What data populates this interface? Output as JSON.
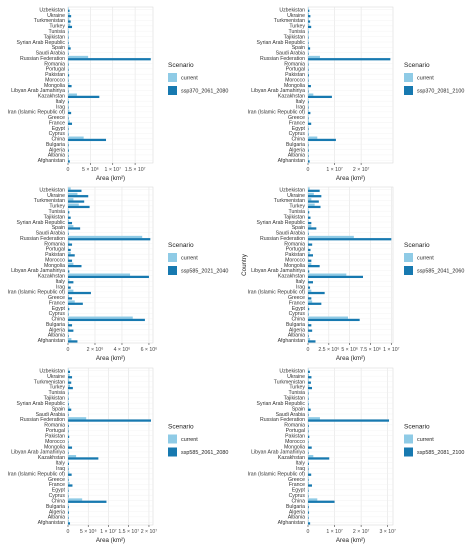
{
  "countries": [
    "Uzbekistan",
    "Ukraine",
    "Turkmenistan",
    "Turkey",
    "Tunisia",
    "Tajikistan",
    "Syrian Arab Republic",
    "Spain",
    "Saudi Arabia",
    "Russian Federation",
    "Romania",
    "Portugal",
    "Pakistan",
    "Morocco",
    "Mongolia",
    "Libyan Arab Jamahiriya",
    "Kazakhstan",
    "Italy",
    "Iraq",
    "Iran (Islamic Republic of)",
    "Greece",
    "France",
    "Egypt",
    "Cyprus",
    "China",
    "Bulgaria",
    "Algeria",
    "Albania",
    "Afghanistan"
  ],
  "legend_title": "Scenario",
  "colors": {
    "current": "#8fcbe6",
    "future": "#1779b0"
  },
  "chart_data": [
    {
      "type": "bar",
      "orientation": "horizontal",
      "xlabel": "Area (km²)",
      "ylabel": "",
      "xlim": [
        0,
        19000000
      ],
      "xticks": [
        0,
        5000000,
        10000000,
        15000000
      ],
      "xtick_labels": [
        "0",
        "5 × 10⁶",
        "1 × 10⁷",
        "1.5 × 10⁷"
      ],
      "series": [
        {
          "name": "current",
          "values": [
            150000,
            400000,
            300000,
            500000,
            20000,
            40000,
            60000,
            350000,
            10000,
            4500000,
            60000,
            30000,
            120000,
            60000,
            300000,
            30000,
            2000000,
            80000,
            30000,
            300000,
            50000,
            400000,
            20000,
            5000,
            3500000,
            50000,
            80000,
            10000,
            200000
          ]
        },
        {
          "name": "ssp370_2061_2080",
          "values": [
            350000,
            700000,
            600000,
            900000,
            50000,
            80000,
            150000,
            600000,
            30000,
            18500000,
            150000,
            80000,
            250000,
            120000,
            800000,
            60000,
            7000000,
            200000,
            60000,
            700000,
            100000,
            900000,
            50000,
            15000,
            8500000,
            150000,
            200000,
            30000,
            400000
          ]
        }
      ]
    },
    {
      "type": "bar",
      "orientation": "horizontal",
      "xlabel": "Area (km²)",
      "ylabel": "",
      "xlim": [
        0,
        32000000
      ],
      "xticks": [
        0,
        10000000,
        20000000
      ],
      "xtick_labels": [
        "0",
        "1 × 10⁷",
        "2 × 10⁷"
      ],
      "series": [
        {
          "name": "current",
          "values": [
            150000,
            400000,
            300000,
            500000,
            20000,
            40000,
            60000,
            350000,
            10000,
            4500000,
            60000,
            30000,
            120000,
            60000,
            300000,
            30000,
            2000000,
            80000,
            30000,
            300000,
            50000,
            400000,
            20000,
            5000,
            3500000,
            50000,
            80000,
            10000,
            200000
          ]
        },
        {
          "name": "ssp370_2081_2100",
          "values": [
            500000,
            900000,
            800000,
            1200000,
            70000,
            100000,
            200000,
            800000,
            40000,
            31000000,
            200000,
            100000,
            350000,
            150000,
            1100000,
            80000,
            9000000,
            300000,
            80000,
            900000,
            150000,
            1200000,
            70000,
            20000,
            10500000,
            200000,
            300000,
            40000,
            600000
          ]
        }
      ]
    },
    {
      "type": "bar",
      "orientation": "horizontal",
      "xlabel": "Area (km²)",
      "ylabel": "",
      "xlim": [
        0,
        6300000
      ],
      "xticks": [
        0,
        2000000,
        4000000,
        6000000
      ],
      "xtick_labels": [
        "0",
        "2 × 10⁶",
        "4 × 10⁶",
        "6 × 10⁶"
      ],
      "series": [
        {
          "name": "current",
          "values": [
            200000,
            700000,
            400000,
            800000,
            20000,
            50000,
            80000,
            400000,
            10000,
            5500000,
            100000,
            50000,
            200000,
            80000,
            400000,
            30000,
            4600000,
            100000,
            40000,
            400000,
            80000,
            500000,
            20000,
            8000,
            4800000,
            80000,
            100000,
            10000,
            250000
          ]
        },
        {
          "name": "ssp585_2021_2040",
          "values": [
            1000000,
            1500000,
            1200000,
            1600000,
            100000,
            200000,
            300000,
            900000,
            50000,
            6100000,
            300000,
            200000,
            500000,
            300000,
            1000000,
            100000,
            6000000,
            400000,
            200000,
            1700000,
            300000,
            1100000,
            100000,
            30000,
            5700000,
            300000,
            400000,
            50000,
            700000
          ]
        }
      ]
    },
    {
      "type": "bar",
      "orientation": "horizontal",
      "xlabel": "Area (km²)",
      "ylabel": "Country",
      "xlim": [
        0,
        10200000
      ],
      "xticks": [
        0,
        2500000,
        5000000,
        7500000,
        10000000
      ],
      "xtick_labels": [
        "0",
        "2.5 × 10⁶",
        "5 × 10⁶",
        "7.5 × 10⁶",
        "1 × 10⁷"
      ],
      "series": [
        {
          "name": "current",
          "values": [
            200000,
            700000,
            400000,
            800000,
            20000,
            50000,
            80000,
            400000,
            10000,
            5500000,
            100000,
            50000,
            200000,
            80000,
            400000,
            30000,
            4600000,
            100000,
            40000,
            400000,
            80000,
            500000,
            20000,
            8000,
            4800000,
            80000,
            100000,
            10000,
            250000
          ]
        },
        {
          "name": "ssp585_2041_2060",
          "values": [
            1400000,
            1600000,
            1300000,
            1500000,
            150000,
            300000,
            400000,
            1000000,
            80000,
            10000000,
            500000,
            300000,
            600000,
            400000,
            1400000,
            150000,
            6600000,
            600000,
            250000,
            2000000,
            400000,
            1600000,
            150000,
            50000,
            6200000,
            400000,
            500000,
            80000,
            900000
          ]
        }
      ]
    },
    {
      "type": "bar",
      "orientation": "horizontal",
      "xlabel": "Area (km²)",
      "ylabel": "",
      "xlim": [
        0,
        21000000
      ],
      "xticks": [
        0,
        5000000,
        10000000,
        15000000,
        20000000
      ],
      "xtick_labels": [
        "0",
        "5 × 10⁶",
        "1 × 10⁷",
        "1.5 × 10⁷",
        "2 × 10⁷"
      ],
      "series": [
        {
          "name": "current",
          "values": [
            150000,
            400000,
            300000,
            500000,
            20000,
            40000,
            60000,
            350000,
            10000,
            4500000,
            60000,
            30000,
            120000,
            60000,
            300000,
            30000,
            2000000,
            80000,
            30000,
            300000,
            50000,
            400000,
            20000,
            5000,
            3500000,
            50000,
            80000,
            10000,
            200000
          ]
        },
        {
          "name": "ssp585_2061_2080",
          "values": [
            500000,
            1000000,
            800000,
            1200000,
            60000,
            100000,
            200000,
            800000,
            40000,
            20500000,
            200000,
            100000,
            300000,
            150000,
            1000000,
            70000,
            7500000,
            250000,
            80000,
            900000,
            150000,
            1100000,
            60000,
            20000,
            9500000,
            200000,
            250000,
            40000,
            500000
          ]
        }
      ]
    },
    {
      "type": "bar",
      "orientation": "horizontal",
      "xlabel": "Area (km²)",
      "ylabel": "",
      "xlim": [
        0,
        32000000
      ],
      "xticks": [
        0,
        10000000,
        20000000,
        30000000
      ],
      "xtick_labels": [
        "0",
        "1 × 10⁷",
        "2 × 10⁷",
        "3 × 10⁷"
      ],
      "series": [
        {
          "name": "current",
          "values": [
            150000,
            400000,
            300000,
            500000,
            20000,
            40000,
            60000,
            350000,
            10000,
            4500000,
            60000,
            30000,
            120000,
            60000,
            300000,
            30000,
            2000000,
            80000,
            30000,
            300000,
            50000,
            400000,
            20000,
            5000,
            3500000,
            50000,
            80000,
            10000,
            200000
          ]
        },
        {
          "name": "ssp585_2081_2100",
          "values": [
            700000,
            1300000,
            1100000,
            1500000,
            80000,
            150000,
            250000,
            1000000,
            60000,
            30500000,
            300000,
            150000,
            500000,
            200000,
            1400000,
            100000,
            8000000,
            350000,
            100000,
            1200000,
            200000,
            1500000,
            80000,
            30000,
            10000000,
            300000,
            400000,
            50000,
            800000
          ]
        }
      ]
    }
  ]
}
